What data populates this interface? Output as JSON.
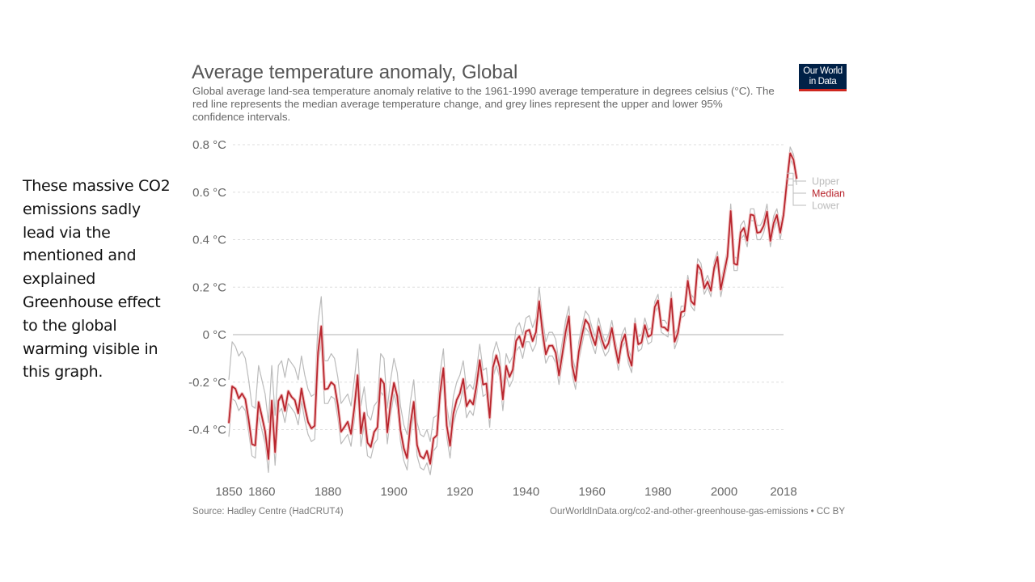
{
  "side_text": "These massive CO2 emissions sadly lead via the mentioned and explained Greenhouse effect to the global warming visible in this graph.",
  "logo": {
    "line1": "Our World",
    "line2": "in Data",
    "bg": "#002147",
    "accent": "#ce261e"
  },
  "footer": {
    "source": "Source: Hadley Centre (HadCRUT4)",
    "url": "OurWorldInData.org/co2-and-other-greenhouse-gas-emissions • CC BY"
  },
  "chart_data": {
    "type": "line",
    "title": "Average temperature anomaly, Global",
    "subtitle": "Global average land-sea temperature anomaly relative to the 1961-1990 average temperature in degrees celsius (°C). The red line represents the median average temperature change, and grey lines represent the upper and lower 95% confidence intervals.",
    "xlabel": "",
    "ylabel": "",
    "xlim": [
      1850,
      2018
    ],
    "ylim": [
      -0.6,
      0.85
    ],
    "grid": true,
    "y_ticks": [
      {
        "value": 0.8,
        "label": "0.8 °C"
      },
      {
        "value": 0.6,
        "label": "0.6 °C"
      },
      {
        "value": 0.4,
        "label": "0.4 °C"
      },
      {
        "value": 0.2,
        "label": "0.2 °C"
      },
      {
        "value": 0,
        "label": "0 °C"
      },
      {
        "value": -0.2,
        "label": "-0.2 °C"
      },
      {
        "value": -0.4,
        "label": "-0.4 °C"
      }
    ],
    "x_ticks": [
      {
        "value": 1850,
        "label": "1850"
      },
      {
        "value": 1860,
        "label": "1860"
      },
      {
        "value": 1880,
        "label": "1880"
      },
      {
        "value": 1900,
        "label": "1900"
      },
      {
        "value": 1920,
        "label": "1920"
      },
      {
        "value": 1940,
        "label": "1940"
      },
      {
        "value": 1960,
        "label": "1960"
      },
      {
        "value": 1980,
        "label": "1980"
      },
      {
        "value": 2000,
        "label": "2000"
      },
      {
        "value": 2018,
        "label": "2018"
      }
    ],
    "x_start": 1850,
    "series": [
      {
        "name": "Median",
        "color": "#b8252d",
        "values": [
          -0.373,
          -0.218,
          -0.228,
          -0.269,
          -0.248,
          -0.272,
          -0.358,
          -0.461,
          -0.467,
          -0.284,
          -0.343,
          -0.407,
          -0.524,
          -0.278,
          -0.495,
          -0.279,
          -0.255,
          -0.321,
          -0.238,
          -0.262,
          -0.276,
          -0.331,
          -0.227,
          -0.304,
          -0.368,
          -0.395,
          -0.384,
          -0.075,
          0.035,
          -0.23,
          -0.227,
          -0.2,
          -0.213,
          -0.296,
          -0.409,
          -0.389,
          -0.367,
          -0.418,
          -0.307,
          -0.171,
          -0.416,
          -0.33,
          -0.455,
          -0.473,
          -0.41,
          -0.39,
          -0.186,
          -0.206,
          -0.412,
          -0.289,
          -0.203,
          -0.259,
          -0.402,
          -0.479,
          -0.52,
          -0.377,
          -0.283,
          -0.465,
          -0.511,
          -0.522,
          -0.49,
          -0.544,
          -0.437,
          -0.424,
          -0.244,
          -0.141,
          -0.383,
          -0.468,
          -0.333,
          -0.275,
          -0.247,
          -0.187,
          -0.302,
          -0.276,
          -0.294,
          -0.215,
          -0.108,
          -0.21,
          -0.206,
          -0.35,
          -0.137,
          -0.087,
          -0.137,
          -0.273,
          -0.131,
          -0.178,
          -0.147,
          -0.026,
          -0.006,
          -0.052,
          0.014,
          0.02,
          -0.027,
          0.01,
          0.141,
          0.012,
          -0.083,
          -0.047,
          -0.046,
          -0.077,
          -0.172,
          -0.083,
          0.011,
          0.077,
          -0.131,
          -0.195,
          -0.072,
          -0.001,
          0.063,
          0.044,
          -0.007,
          -0.044,
          0.034,
          -0.021,
          -0.059,
          -0.036,
          0.028,
          -0.052,
          -0.119,
          -0.032,
          0.001,
          -0.088,
          -0.131,
          0.046,
          -0.041,
          -0.033,
          0.04,
          -0.009,
          0.0,
          0.117,
          0.144,
          0.033,
          0.03,
          0.016,
          0.152,
          -0.03,
          0.006,
          0.095,
          0.099,
          0.227,
          0.141,
          0.126,
          0.294,
          0.272,
          0.195,
          0.223,
          0.185,
          0.283,
          0.327,
          0.19,
          0.26,
          0.329,
          0.521,
          0.299,
          0.294,
          0.431,
          0.449,
          0.396,
          0.506,
          0.502,
          0.429,
          0.432,
          0.459,
          0.518,
          0.395,
          0.47,
          0.504,
          0.429,
          0.504,
          0.641,
          0.764,
          0.737,
          0.656
        ]
      },
      {
        "name": "Upper",
        "color": "#bbbbbb",
        "values": [
          -0.19,
          -0.03,
          -0.05,
          -0.09,
          -0.07,
          -0.1,
          -0.19,
          -0.3,
          -0.31,
          -0.13,
          -0.19,
          -0.25,
          -0.37,
          -0.13,
          -0.34,
          -0.13,
          -0.11,
          -0.18,
          -0.1,
          -0.12,
          -0.14,
          -0.19,
          -0.09,
          -0.17,
          -0.23,
          -0.26,
          -0.25,
          0.05,
          0.16,
          -0.11,
          -0.11,
          -0.08,
          -0.1,
          -0.18,
          -0.29,
          -0.27,
          -0.25,
          -0.3,
          -0.19,
          -0.06,
          -0.3,
          -0.22,
          -0.34,
          -0.36,
          -0.3,
          -0.28,
          -0.08,
          -0.1,
          -0.31,
          -0.19,
          -0.1,
          -0.16,
          -0.3,
          -0.38,
          -0.42,
          -0.28,
          -0.19,
          -0.37,
          -0.42,
          -0.43,
          -0.4,
          -0.45,
          -0.35,
          -0.34,
          -0.16,
          -0.06,
          -0.3,
          -0.39,
          -0.26,
          -0.2,
          -0.17,
          -0.11,
          -0.23,
          -0.21,
          -0.23,
          -0.15,
          -0.04,
          -0.15,
          -0.14,
          -0.29,
          -0.08,
          -0.03,
          -0.08,
          -0.22,
          -0.08,
          -0.12,
          -0.09,
          0.03,
          0.05,
          0.0,
          0.07,
          0.08,
          0.03,
          0.07,
          0.2,
          0.07,
          -0.03,
          0.01,
          0.01,
          -0.02,
          -0.12,
          -0.03,
          0.06,
          0.12,
          -0.09,
          -0.15,
          -0.03,
          0.04,
          0.1,
          0.08,
          0.03,
          -0.01,
          0.07,
          0.01,
          -0.03,
          0.0,
          0.06,
          -0.02,
          -0.09,
          0.0,
          0.03,
          -0.06,
          -0.1,
          0.07,
          -0.01,
          0.0,
          0.07,
          0.02,
          0.03,
          0.14,
          0.17,
          0.06,
          0.06,
          0.04,
          0.18,
          0.0,
          0.03,
          0.12,
          0.12,
          0.25,
          0.17,
          0.15,
          0.32,
          0.3,
          0.22,
          0.25,
          0.21,
          0.31,
          0.35,
          0.22,
          0.29,
          0.36,
          0.55,
          0.33,
          0.32,
          0.46,
          0.48,
          0.42,
          0.53,
          0.53,
          0.46,
          0.46,
          0.49,
          0.55,
          0.42,
          0.5,
          0.53,
          0.46,
          0.53,
          0.67,
          0.79,
          0.76,
          0.68
        ]
      },
      {
        "name": "Lower",
        "color": "#bbbbbb",
        "values": [
          -0.43,
          -0.27,
          -0.28,
          -0.32,
          -0.3,
          -0.32,
          -0.41,
          -0.51,
          -0.52,
          -0.34,
          -0.4,
          -0.46,
          -0.58,
          -0.33,
          -0.55,
          -0.33,
          -0.31,
          -0.37,
          -0.29,
          -0.31,
          -0.33,
          -0.38,
          -0.28,
          -0.36,
          -0.42,
          -0.45,
          -0.44,
          -0.13,
          -0.03,
          -0.29,
          -0.29,
          -0.26,
          -0.27,
          -0.35,
          -0.46,
          -0.44,
          -0.42,
          -0.47,
          -0.36,
          -0.22,
          -0.47,
          -0.38,
          -0.51,
          -0.52,
          -0.46,
          -0.44,
          -0.24,
          -0.26,
          -0.46,
          -0.34,
          -0.25,
          -0.31,
          -0.45,
          -0.53,
          -0.57,
          -0.43,
          -0.33,
          -0.51,
          -0.56,
          -0.57,
          -0.54,
          -0.59,
          -0.49,
          -0.47,
          -0.29,
          -0.19,
          -0.43,
          -0.52,
          -0.38,
          -0.32,
          -0.29,
          -0.23,
          -0.35,
          -0.32,
          -0.34,
          -0.26,
          -0.15,
          -0.26,
          -0.25,
          -0.39,
          -0.18,
          -0.13,
          -0.18,
          -0.32,
          -0.17,
          -0.22,
          -0.19,
          -0.07,
          -0.05,
          -0.1,
          -0.03,
          -0.03,
          -0.07,
          -0.04,
          0.1,
          -0.03,
          -0.12,
          -0.09,
          -0.09,
          -0.12,
          -0.21,
          -0.12,
          -0.03,
          0.04,
          -0.17,
          -0.23,
          -0.11,
          -0.04,
          0.03,
          0.01,
          -0.04,
          -0.08,
          0.0,
          -0.05,
          -0.09,
          -0.07,
          0.0,
          -0.08,
          -0.15,
          -0.06,
          -0.03,
          -0.12,
          -0.16,
          0.02,
          -0.07,
          -0.06,
          0.01,
          -0.04,
          -0.03,
          0.09,
          0.12,
          0.01,
          0.0,
          -0.01,
          0.13,
          -0.06,
          -0.02,
          0.07,
          0.08,
          0.2,
          0.12,
          0.1,
          0.27,
          0.25,
          0.17,
          0.2,
          0.16,
          0.26,
          0.3,
          0.16,
          0.23,
          0.3,
          0.49,
          0.27,
          0.27,
          0.4,
          0.42,
          0.37,
          0.48,
          0.48,
          0.4,
          0.4,
          0.43,
          0.49,
          0.37,
          0.44,
          0.48,
          0.4,
          0.48,
          0.61,
          0.74,
          0.71,
          0.63
        ]
      }
    ],
    "legend": {
      "placement": "right-end-of-lines",
      "entries": [
        {
          "label": "Upper",
          "color": "#bbbbbb"
        },
        {
          "label": "Median",
          "color": "#b8252d"
        },
        {
          "label": "Lower",
          "color": "#bbbbbb"
        }
      ]
    }
  }
}
